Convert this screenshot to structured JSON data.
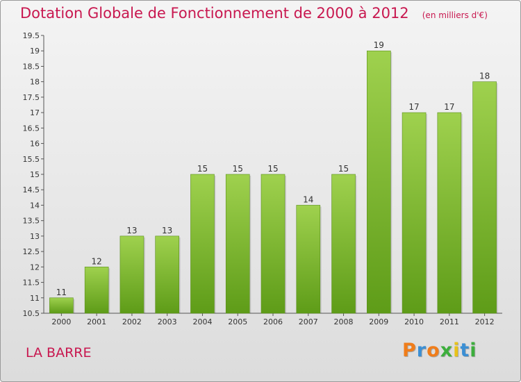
{
  "title": "Dotation Globale de Fonctionnement de 2000 à 2012",
  "subtitle": "(en milliers d'€)",
  "commune": "LA BARRE",
  "logo": {
    "letters": [
      "P",
      "r",
      "o",
      "x",
      "i",
      "t",
      "i"
    ],
    "colors": [
      "#f07d1a",
      "#3b8fd4",
      "#f07d1a",
      "#3cae3c",
      "#e8c21a",
      "#3b8fd4",
      "#3cae3c"
    ]
  },
  "chart_data": {
    "type": "bar",
    "categories": [
      "2000",
      "2001",
      "2002",
      "2003",
      "2004",
      "2005",
      "2006",
      "2007",
      "2008",
      "2009",
      "2010",
      "2011",
      "2012"
    ],
    "values": [
      11,
      12,
      13,
      13,
      15,
      15,
      15,
      14,
      15,
      19,
      17,
      17,
      18
    ],
    "value_labels": [
      "11",
      "12",
      "13",
      "13",
      "15",
      "15",
      "15",
      "14",
      "15",
      "19",
      "17",
      "17",
      "18"
    ],
    "ylim": [
      10.5,
      19.5
    ],
    "yticks": [
      10.5,
      11,
      11.5,
      12,
      12.5,
      13,
      13.5,
      14,
      14.5,
      15,
      15.5,
      16,
      16.5,
      17,
      17.5,
      18,
      18.5,
      19,
      19.5
    ],
    "ytick_labels": [
      "10.5",
      "11",
      "11.5",
      "12",
      "12.5",
      "13",
      "13.5",
      "14",
      "14.5",
      "15",
      "15.5",
      "16",
      "16.5",
      "17",
      "17.5",
      "18",
      "18.5",
      "19",
      "19.5"
    ],
    "bar_color_top": "#9fd14e",
    "bar_color_bottom": "#5e9c18",
    "grid": false
  }
}
